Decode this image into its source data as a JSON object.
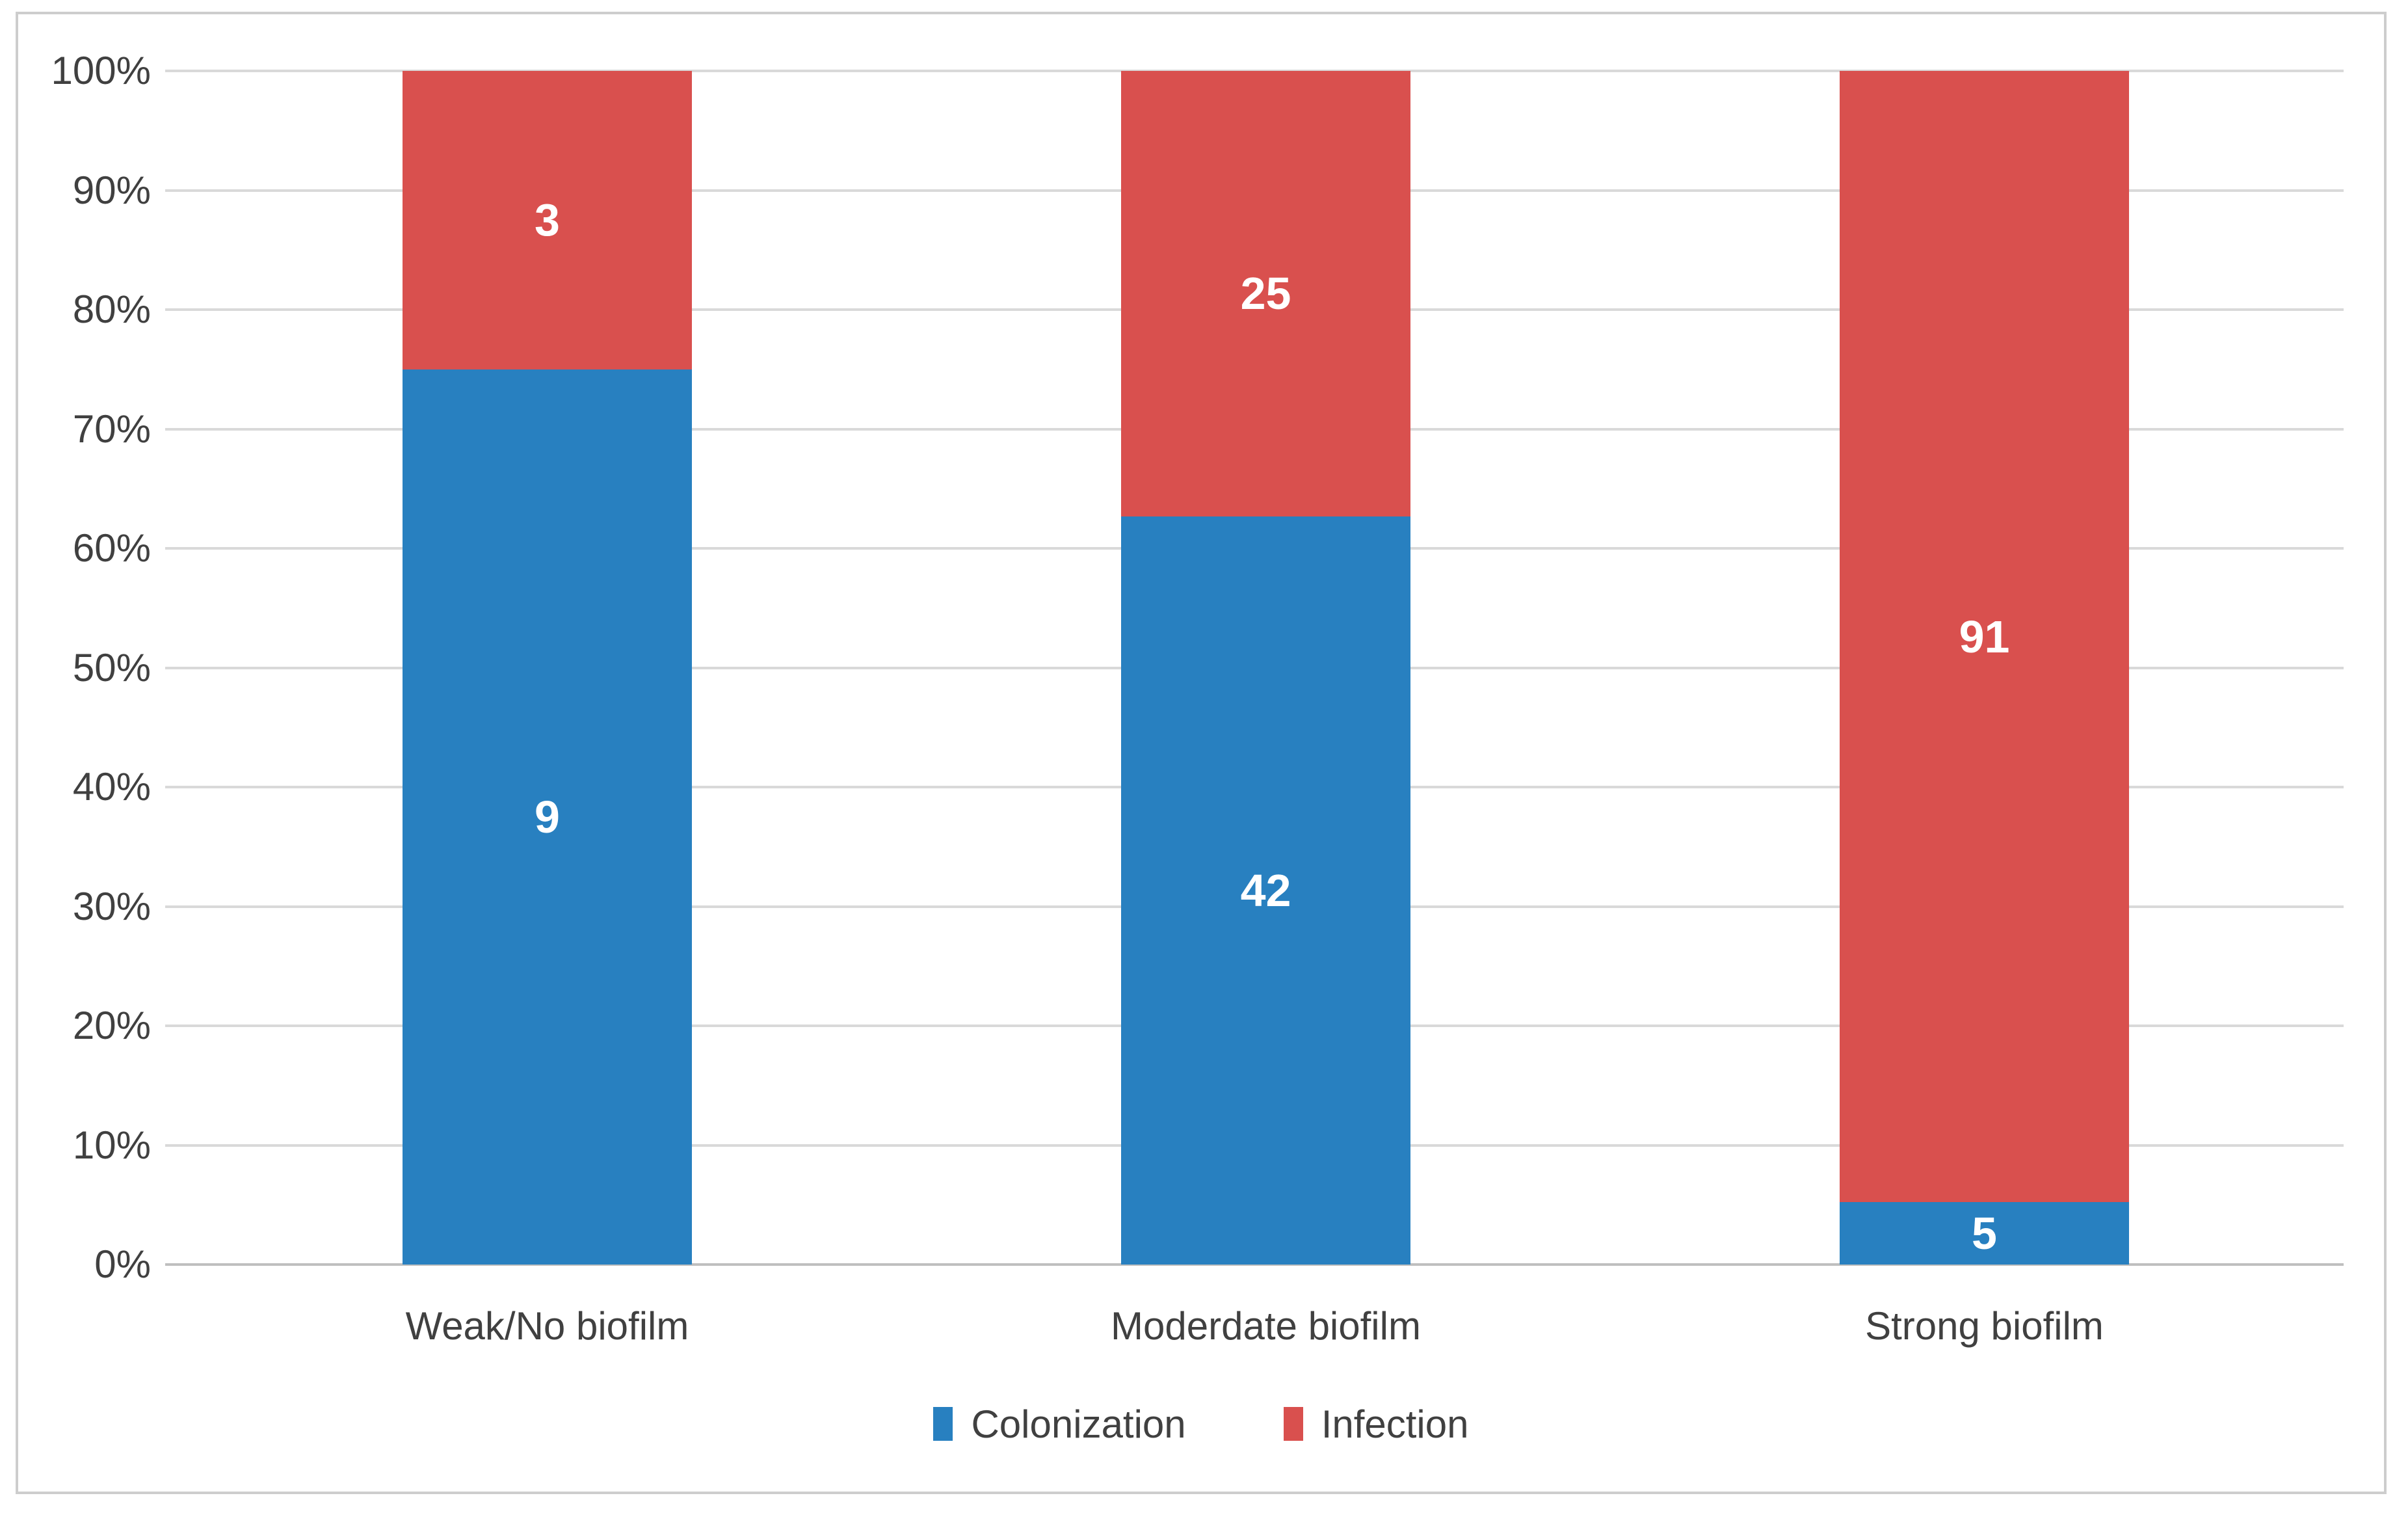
{
  "chart_data": {
    "type": "bar",
    "subtype": "stacked-100-percent-column",
    "title": "",
    "categories": [
      "Weak/No biofilm",
      "Moderdate biofilm",
      "Strong biofilm"
    ],
    "series": [
      {
        "name": "Colonization",
        "color": "#2880c0",
        "values": [
          9,
          42,
          5
        ]
      },
      {
        "name": "Infection",
        "color": "#d9504e",
        "values": [
          3,
          25,
          91
        ]
      }
    ],
    "stack_order_bottom_to_top": [
      "Colonization",
      "Infection"
    ],
    "data_labels_visible": true,
    "y_axis": {
      "min": 0,
      "max": 100,
      "tick_step": 10,
      "tick_labels": [
        "0%",
        "10%",
        "20%",
        "30%",
        "40%",
        "50%",
        "60%",
        "70%",
        "80%",
        "90%",
        "100%"
      ],
      "format": "percent"
    },
    "legend": {
      "position": "bottom",
      "entries": [
        "Colonization",
        "Infection"
      ]
    },
    "grid": true,
    "ylim": [
      0,
      100
    ]
  },
  "colors": {
    "colonization_blue": "#2880c0",
    "infection_red": "#d9504e",
    "gridline": "#d9d9d9",
    "axis_line": "#bfbfbf",
    "frame_border": "#cdcdcd",
    "label_text": "#404040",
    "data_label_text": "#ffffff",
    "background": "#ffffff"
  }
}
